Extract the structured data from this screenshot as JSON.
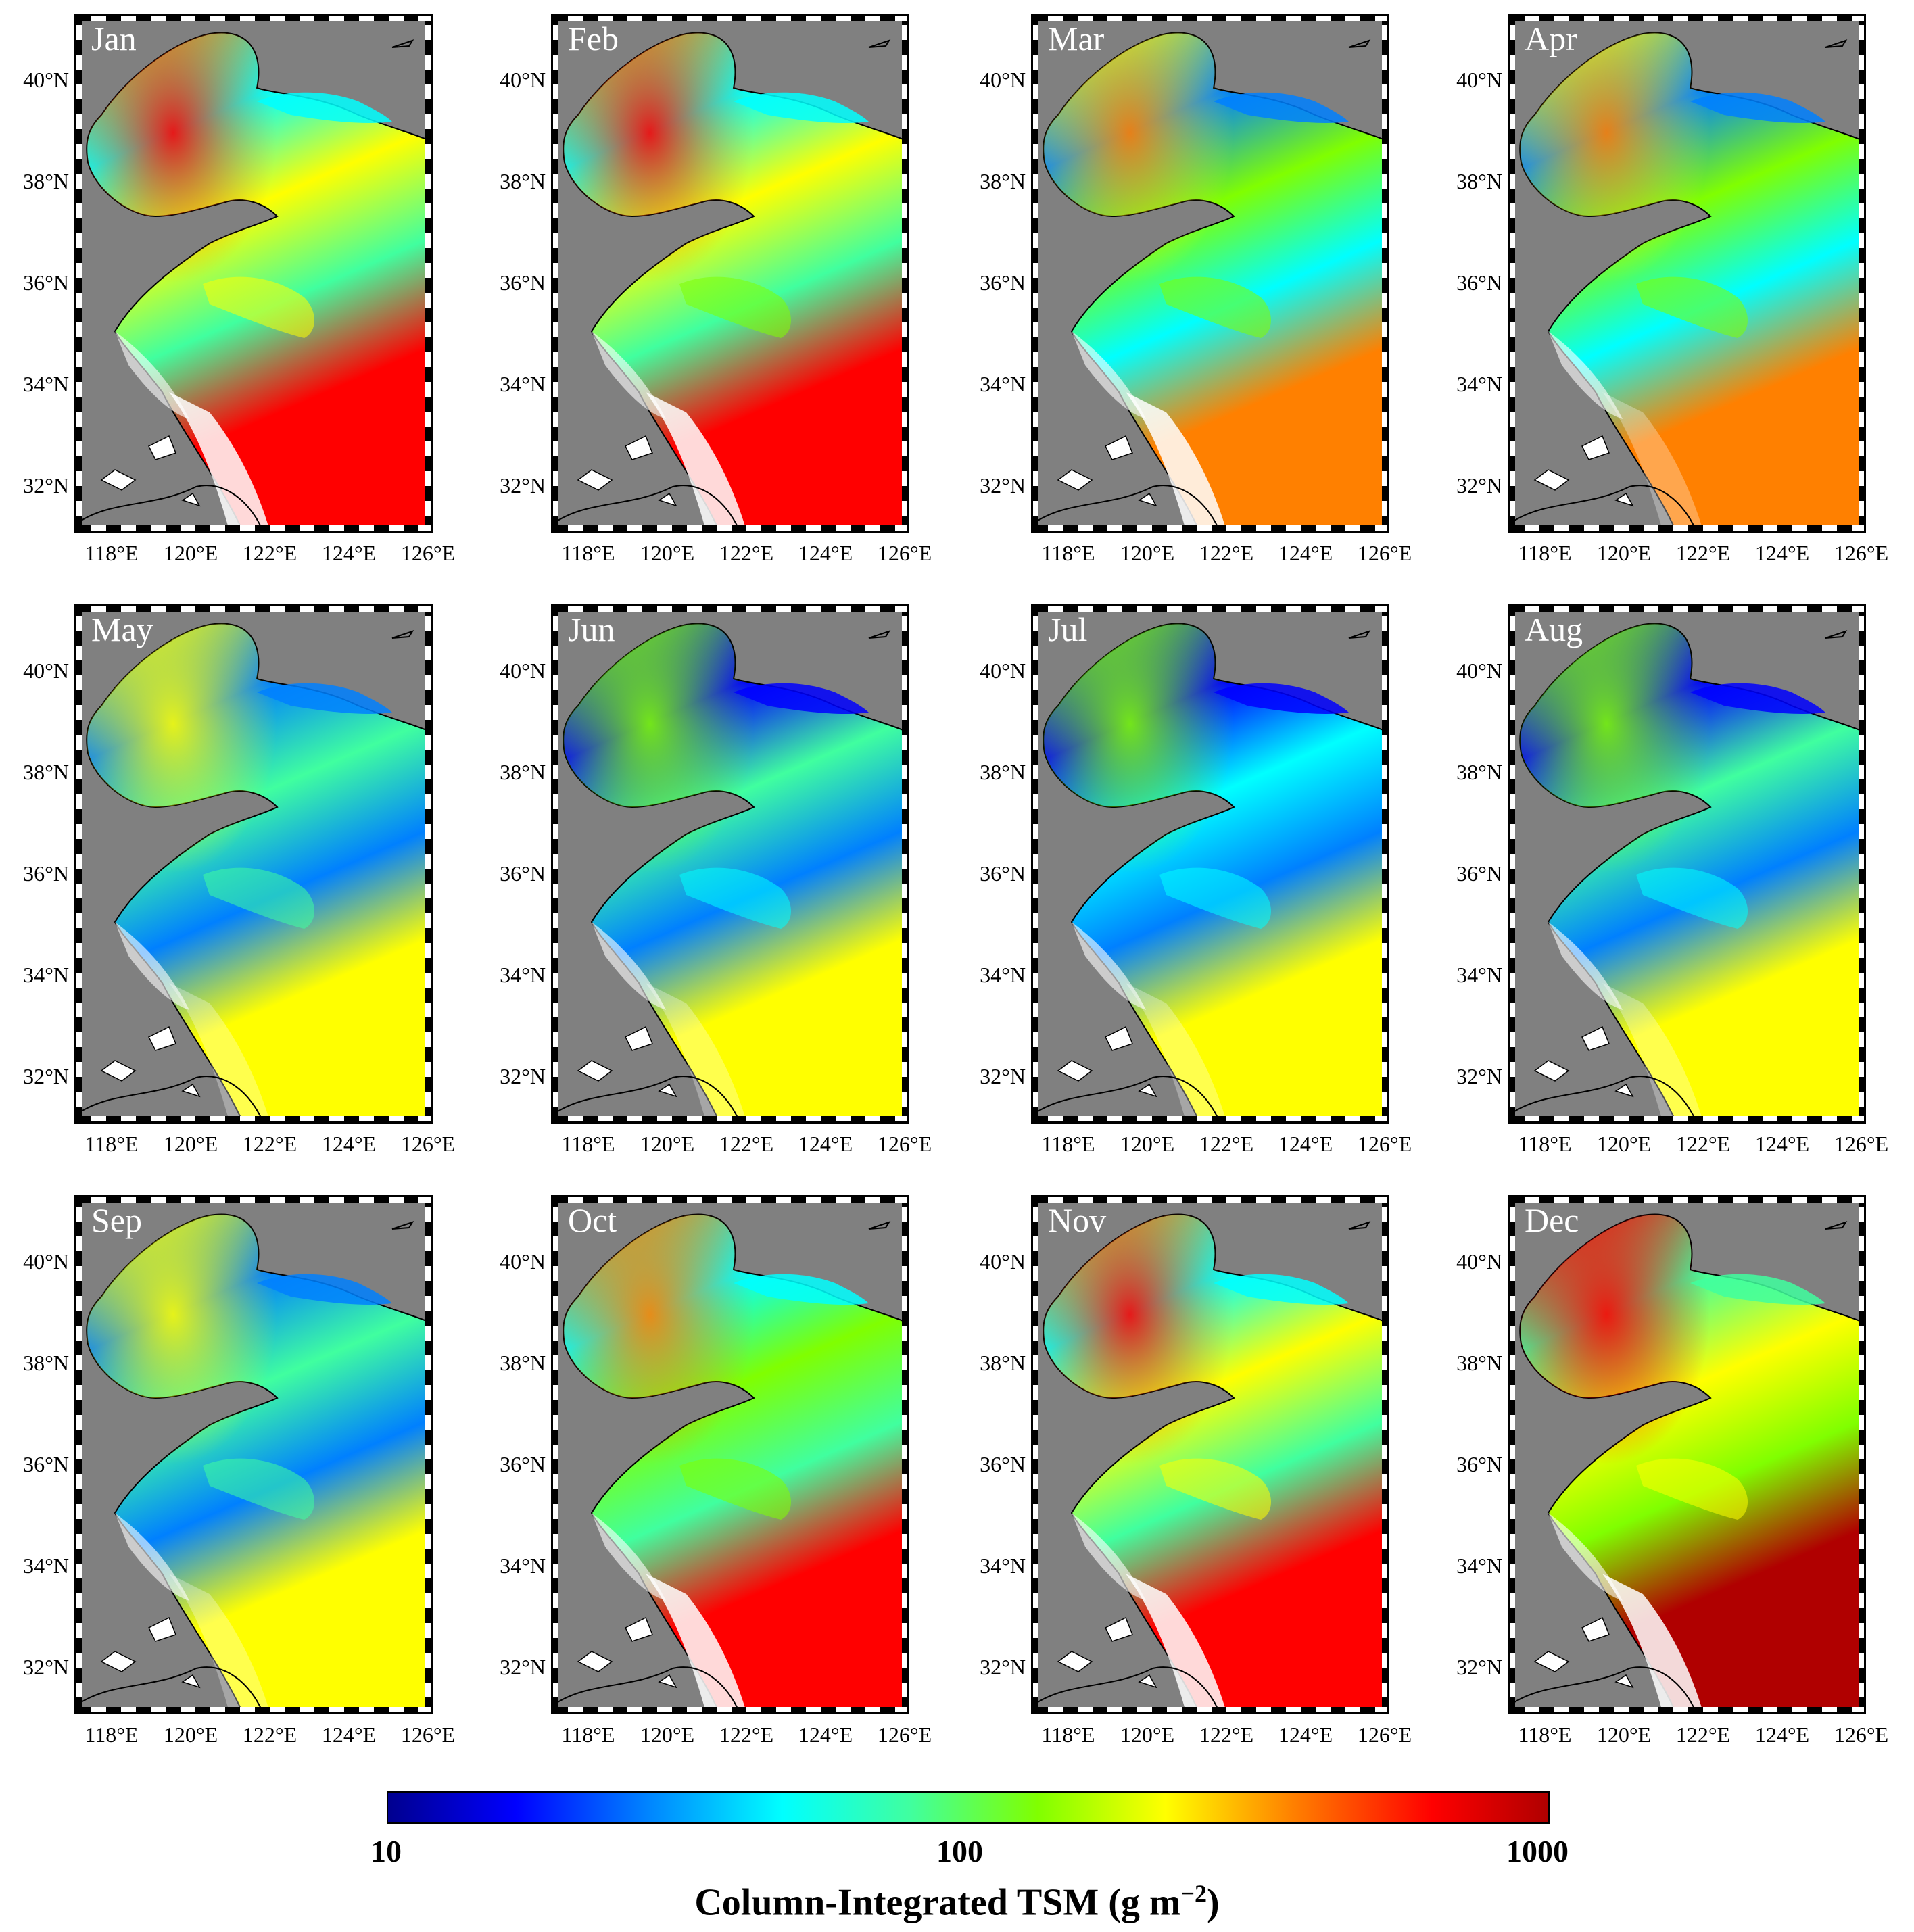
{
  "panels": [
    {
      "month": "Jan",
      "level": 0.72
    },
    {
      "month": "Feb",
      "level": 0.7
    },
    {
      "month": "Mar",
      "level": 0.62
    },
    {
      "month": "Apr",
      "level": 0.6
    },
    {
      "month": "May",
      "level": 0.52
    },
    {
      "month": "Jun",
      "level": 0.45
    },
    {
      "month": "Jul",
      "level": 0.42
    },
    {
      "month": "Aug",
      "level": 0.45
    },
    {
      "month": "Sep",
      "level": 0.52
    },
    {
      "month": "Oct",
      "level": 0.64
    },
    {
      "month": "Nov",
      "level": 0.72
    },
    {
      "month": "Dec",
      "level": 0.76
    }
  ],
  "axes": {
    "lat_labels": [
      "40°N",
      "38°N",
      "36°N",
      "34°N",
      "32°N"
    ],
    "lon_labels": [
      "118°E",
      "120°E",
      "122°E",
      "124°E",
      "126°E"
    ]
  },
  "colorbar": {
    "ticks": [
      "10",
      "100",
      "1000"
    ],
    "title_main": "Column-Integrated TSM (g m",
    "title_exp": "−2",
    "title_close": ")",
    "colors": [
      "#00008f",
      "#0000ff",
      "#0080ff",
      "#00ffff",
      "#40ff9f",
      "#80ff00",
      "#ffff00",
      "#ff8000",
      "#ff0000",
      "#b00000"
    ]
  },
  "map_colors": {
    "land": "#808080",
    "no_data": "#ffffff",
    "border": "#000000"
  }
}
